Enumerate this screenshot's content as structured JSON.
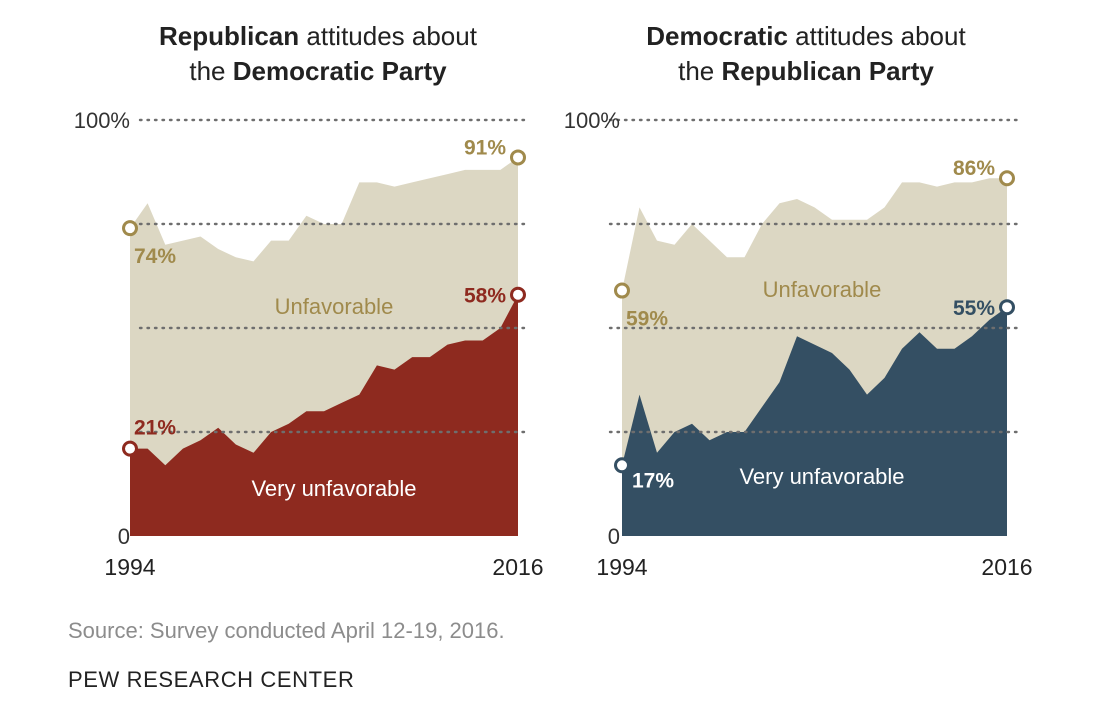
{
  "chart_data": [
    {
      "type": "area",
      "title_parts": [
        {
          "text": "Republican",
          "bold": true
        },
        {
          "text": " attitudes about",
          "bold": false
        },
        {
          "text": "the ",
          "bold": false,
          "newline": true
        },
        {
          "text": "Democratic Party",
          "bold": true
        }
      ],
      "x": [
        1994,
        1995,
        1996,
        1997,
        1998,
        1999,
        2000,
        2001,
        2002,
        2003,
        2004,
        2005,
        2006,
        2007,
        2008,
        2009,
        2010,
        2011,
        2012,
        2013,
        2014,
        2015,
        2016
      ],
      "series": [
        {
          "name": "Unfavorable",
          "role": "total",
          "color": "#dcd7c3",
          "values": [
            74,
            80,
            70,
            71,
            72,
            69,
            67,
            66,
            71,
            71,
            77,
            75,
            75,
            85,
            85,
            84,
            85,
            86,
            87,
            88,
            88,
            88,
            91
          ]
        },
        {
          "name": "Very unfavorable",
          "role": "very",
          "color": "#8e2a1f",
          "values": [
            21,
            21,
            17,
            21,
            23,
            26,
            22,
            20,
            25,
            27,
            30,
            30,
            32,
            34,
            41,
            40,
            43,
            43,
            46,
            47,
            47,
            50,
            58
          ]
        }
      ],
      "y_ticks": [
        0,
        25,
        50,
        75,
        100
      ],
      "y_tick_labels": {
        "0": "0",
        "100": "100%"
      },
      "x_tick_labels": {
        "1994": "1994",
        "2016": "2016"
      },
      "ylim": [
        0,
        100
      ],
      "annotations": {
        "start_total": "74%",
        "end_total": "91%",
        "start_very": "21%",
        "end_very": "58%",
        "total_area_label": "Unfavorable",
        "very_area_label": "Very unfavorable"
      },
      "colors": {
        "label_total": "#a08a4c",
        "label_very_start": "#8e2a1f",
        "label_very_end": "#8e2a1f",
        "very_area_text": "#ffffff"
      }
    },
    {
      "type": "area",
      "title_parts": [
        {
          "text": "Democratic",
          "bold": true
        },
        {
          "text": " attitudes about",
          "bold": false
        },
        {
          "text": "the ",
          "bold": false,
          "newline": true
        },
        {
          "text": "Republican Party",
          "bold": true
        }
      ],
      "x": [
        1994,
        1995,
        1996,
        1997,
        1998,
        1999,
        2000,
        2001,
        2002,
        2003,
        2004,
        2005,
        2006,
        2007,
        2008,
        2009,
        2010,
        2011,
        2012,
        2013,
        2014,
        2015,
        2016
      ],
      "series": [
        {
          "name": "Unfavorable",
          "role": "total",
          "color": "#dcd7c3",
          "values": [
            59,
            79,
            71,
            70,
            75,
            71,
            67,
            67,
            75,
            80,
            81,
            79,
            76,
            76,
            76,
            79,
            85,
            85,
            84,
            85,
            85,
            86,
            86
          ]
        },
        {
          "name": "Very unfavorable",
          "role": "very",
          "color": "#344f63",
          "values": [
            17,
            34,
            20,
            25,
            27,
            23,
            25,
            25,
            31,
            37,
            48,
            46,
            44,
            40,
            34,
            38,
            45,
            49,
            45,
            45,
            48,
            52,
            55
          ]
        }
      ],
      "y_ticks": [
        0,
        25,
        50,
        75,
        100
      ],
      "y_tick_labels": {
        "0": "0",
        "100": "100%"
      },
      "x_tick_labels": {
        "1994": "1994",
        "2016": "2016"
      },
      "ylim": [
        0,
        100
      ],
      "annotations": {
        "start_total": "59%",
        "end_total": "86%",
        "start_very": "17%",
        "end_very": "55%",
        "total_area_label": "Unfavorable",
        "very_area_label": "Very unfavorable"
      },
      "colors": {
        "label_total": "#a08a4c",
        "label_very_start": "#ffffff",
        "label_very_end": "#344f63",
        "very_area_text": "#ffffff"
      }
    }
  ],
  "footer": {
    "source": "Source: Survey conducted April 12-19, 2016.",
    "organization": "PEW RESEARCH CENTER"
  }
}
